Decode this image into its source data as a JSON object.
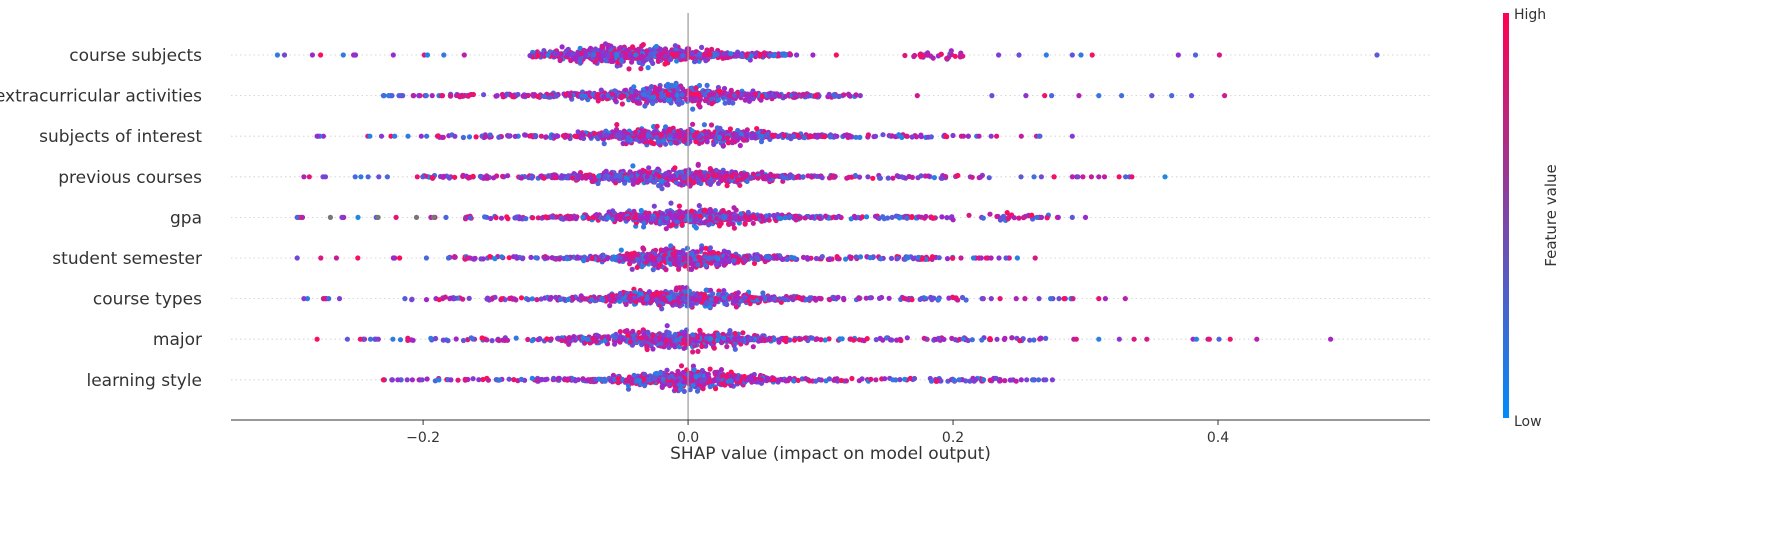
{
  "chart_data": {
    "type": "scatter",
    "subtype": "beeswarm",
    "title": "",
    "xlabel": "SHAP value (impact on model output)",
    "ylabel": "",
    "xlim": [
      -0.345,
      0.56
    ],
    "xticks": [
      -0.2,
      0.0,
      0.2,
      0.4
    ],
    "xtick_labels": [
      "−0.2",
      "0.0",
      "0.2",
      "0.4"
    ],
    "grid": false,
    "features": [
      {
        "name": "course subjects",
        "min": -0.31,
        "max": 0.52,
        "core": [
          -0.12,
          0.08
        ],
        "center": -0.04,
        "width_sd": 0.055,
        "outliers": [
          0.52,
          0.383,
          0.37,
          0.305,
          0.29
        ],
        "cluster": 0.185
      },
      {
        "name": "extracurricular activities",
        "min": -0.23,
        "max": 0.405,
        "core": [
          -0.18,
          0.13
        ],
        "center": -0.01,
        "width_sd": 0.05,
        "outliers": [
          0.405,
          0.38,
          0.365,
          0.35,
          0.31,
          0.295,
          0.255
        ],
        "cluster": null
      },
      {
        "name": "subjects of interest",
        "min": -0.28,
        "max": 0.29,
        "core": [
          -0.19,
          0.2
        ],
        "center": -0.005,
        "width_sd": 0.05,
        "outliers": [
          0.29,
          0.265
        ],
        "cluster": null
      },
      {
        "name": "previous courses",
        "min": -0.29,
        "max": 0.36,
        "core": [
          -0.2,
          0.23
        ],
        "center": -0.01,
        "width_sd": 0.05,
        "outliers": [
          0.36,
          0.335,
          0.31,
          0.298,
          0.29
        ],
        "cluster": null
      },
      {
        "name": "gpa",
        "min": -0.295,
        "max": 0.3,
        "core": [
          -0.17,
          0.2
        ],
        "center": 0.0,
        "width_sd": 0.045,
        "outliers": [
          0.3,
          0.29
        ],
        "cluster": 0.245
      },
      {
        "name": "student semester",
        "min": -0.295,
        "max": 0.262,
        "core": [
          -0.18,
          0.2
        ],
        "center": -0.005,
        "width_sd": 0.04,
        "outliers": [
          0.262,
          0.24,
          0.225
        ],
        "cluster": null
      },
      {
        "name": "course types",
        "min": -0.29,
        "max": 0.33,
        "core": [
          -0.21,
          0.21
        ],
        "center": -0.005,
        "width_sd": 0.045,
        "outliers": [
          0.33,
          0.315,
          0.31,
          0.28
        ],
        "cluster": null
      },
      {
        "name": "major",
        "min": -0.28,
        "max": 0.485,
        "core": [
          -0.22,
          0.27
        ],
        "center": -0.01,
        "width_sd": 0.045,
        "outliers": [
          0.485,
          0.31,
          0.293
        ],
        "cluster": null
      },
      {
        "name": "learning style",
        "min": -0.23,
        "max": 0.275,
        "core": [
          -0.2,
          0.25
        ],
        "center": 0.0,
        "width_sd": 0.04,
        "outliers": [
          0.275,
          0.26
        ],
        "cluster": null
      }
    ],
    "colorbar": {
      "title": "Feature value",
      "high_label": "High",
      "low_label": "Low",
      "high_color": "#ff0052",
      "low_color": "#008bfb"
    },
    "point_colors": {
      "low": "#1e88e5",
      "mid": "#9a28cf",
      "high": "#ff0d57",
      "missing": "#777777"
    }
  }
}
